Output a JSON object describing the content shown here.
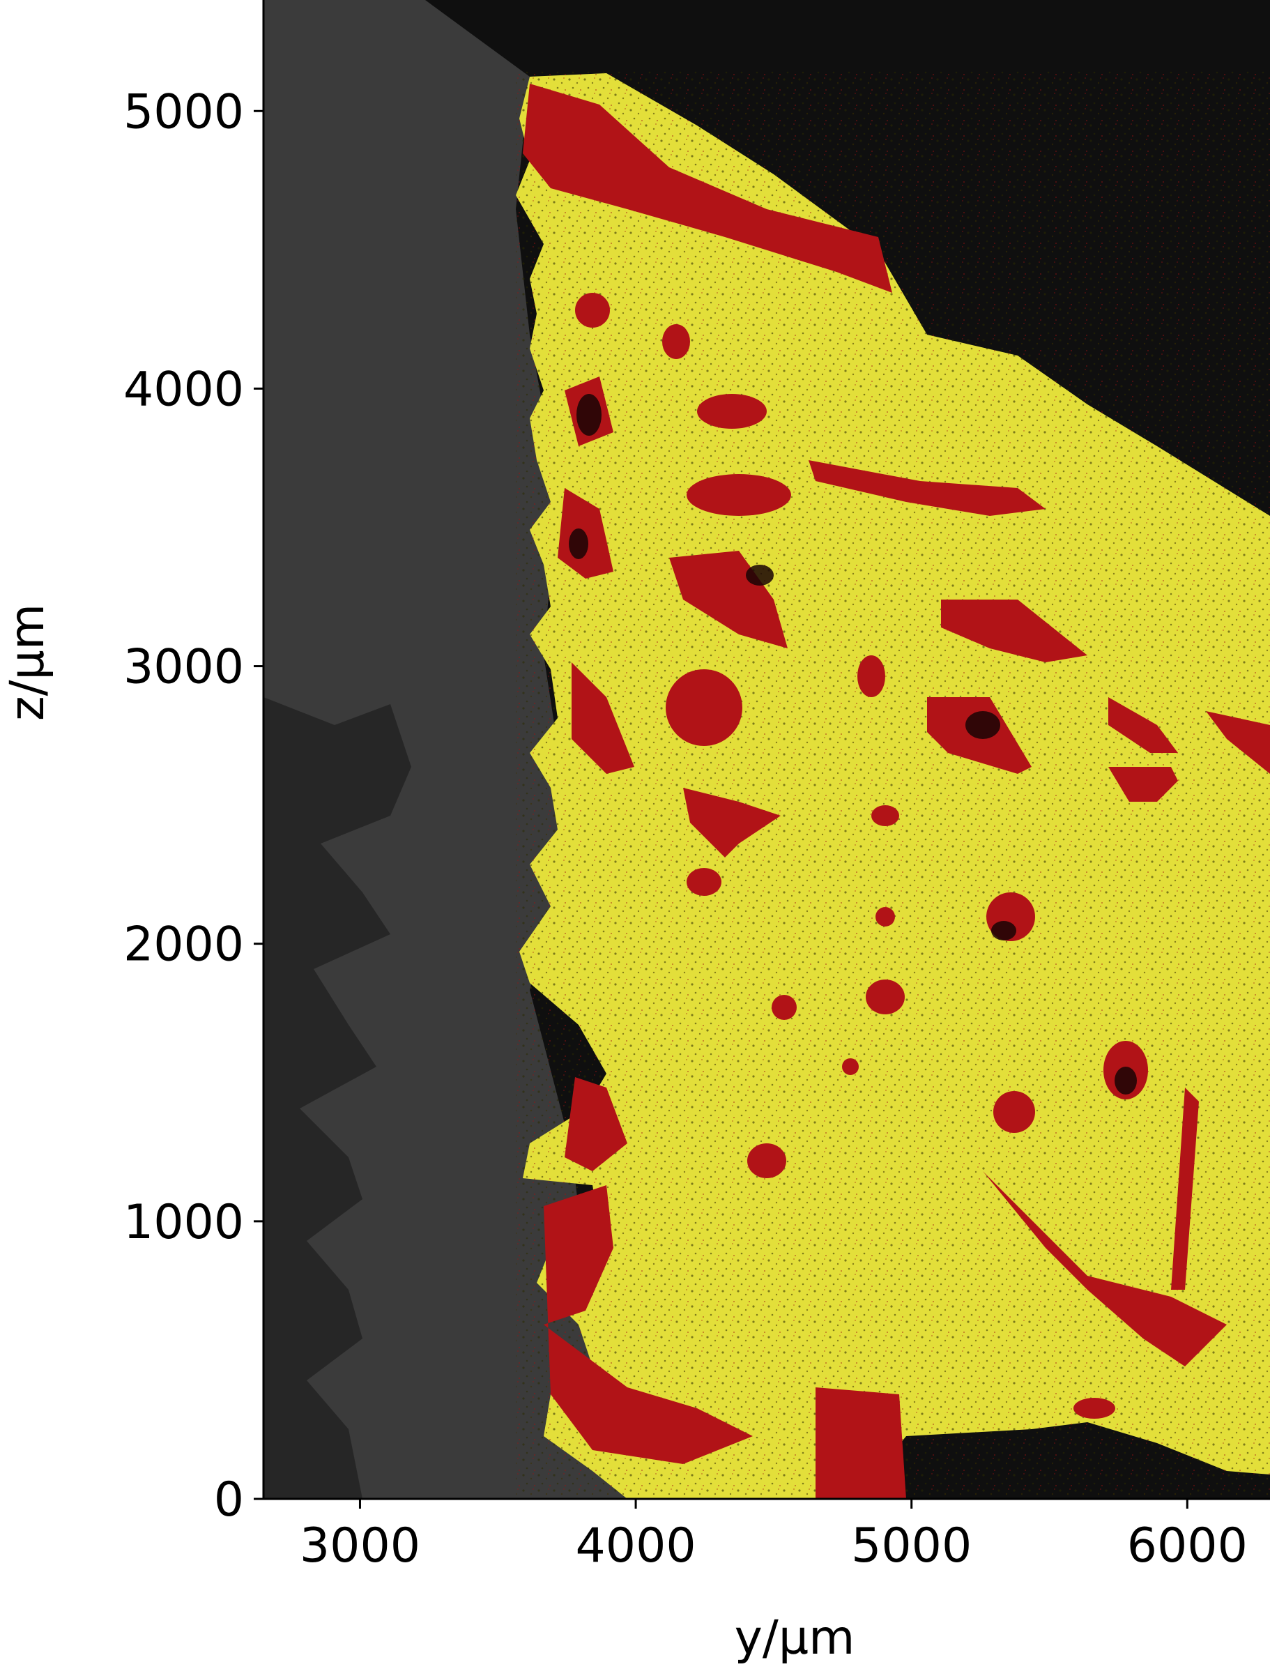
{
  "figure": {
    "xlabel": "y/µm",
    "ylabel": "z/µm",
    "xlim": [
      2650,
      6300
    ],
    "ylim": [
      0,
      5400
    ],
    "xticks": [
      3000,
      4000,
      5000,
      6000
    ],
    "yticks": [
      0,
      1000,
      2000,
      3000,
      4000,
      5000
    ],
    "image_description_colors": {
      "background_dark": "#0f0f0f",
      "implant_grey": "#3a3a3a",
      "bone_matrix": "#e6e23c",
      "pores": "#b11216"
    }
  }
}
